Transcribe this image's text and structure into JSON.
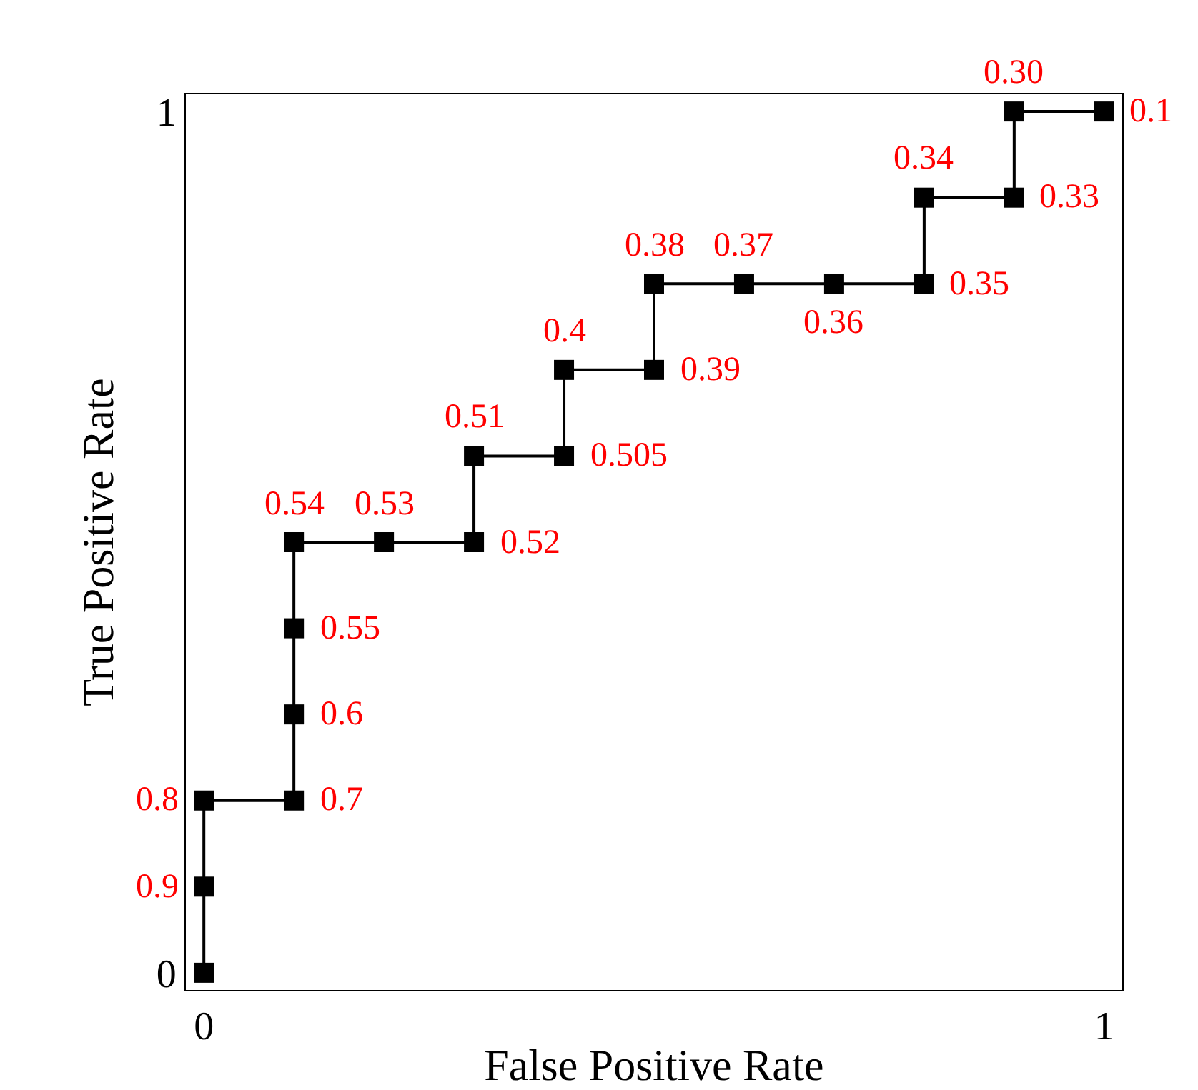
{
  "chart_data": {
    "type": "line",
    "xlabel": "False Positive Rate",
    "ylabel": "True Positive Rate",
    "x": [
      0,
      0,
      0,
      0.1,
      0.1,
      0.1,
      0.1,
      0.2,
      0.3,
      0.3,
      0.4,
      0.4,
      0.5,
      0.5,
      0.6,
      0.7,
      0.8,
      0.8,
      0.9,
      0.9,
      1
    ],
    "series": [
      {
        "color": "#000000",
        "values": [
          0,
          0.1,
          0.2,
          0.2,
          0.3,
          0.4,
          0.5,
          0.5,
          0.5,
          0.6,
          0.6,
          0.7,
          0.7,
          0.8,
          0.8,
          0.8,
          0.8,
          0.9,
          0.9,
          1,
          1
        ]
      }
    ],
    "annotations": [
      {
        "text": "0.9",
        "x": 0,
        "y": 0.1
      },
      {
        "text": "0.8",
        "x": 0,
        "y": 0.2
      },
      {
        "text": "0.7",
        "x": 0.1,
        "y": 0.2
      },
      {
        "text": "0.6",
        "x": 0.1,
        "y": 0.3
      },
      {
        "text": "0.55",
        "x": 0.1,
        "y": 0.4
      },
      {
        "text": "0.54",
        "x": 0.1,
        "y": 0.5
      },
      {
        "text": "0.53",
        "x": 0.2,
        "y": 0.5
      },
      {
        "text": "0.52",
        "x": 0.3,
        "y": 0.5
      },
      {
        "text": "0.51",
        "x": 0.3,
        "y": 0.6
      },
      {
        "text": "0.505",
        "x": 0.4,
        "y": 0.6
      },
      {
        "text": "0.4",
        "x": 0.4,
        "y": 0.7
      },
      {
        "text": "0.39",
        "x": 0.5,
        "y": 0.7
      },
      {
        "text": "0.38",
        "x": 0.5,
        "y": 0.8
      },
      {
        "text": "0.37",
        "x": 0.6,
        "y": 0.8
      },
      {
        "text": "0.36",
        "x": 0.7,
        "y": 0.8
      },
      {
        "text": "0.35",
        "x": 0.8,
        "y": 0.8
      },
      {
        "text": "0.34",
        "x": 0.8,
        "y": 0.9
      },
      {
        "text": "0.33",
        "x": 0.9,
        "y": 0.9
      },
      {
        "text": "0.30",
        "x": 0.9,
        "y": 1
      },
      {
        "text": "0.1",
        "x": 1,
        "y": 1
      }
    ],
    "xlim": [
      -0.02,
      1.02
    ],
    "ylim": [
      -0.02,
      1.02
    ],
    "xticks": [
      0,
      1
    ],
    "yticks": [
      0,
      1
    ],
    "marker": "square",
    "line_style": "solid",
    "grid": false
  }
}
